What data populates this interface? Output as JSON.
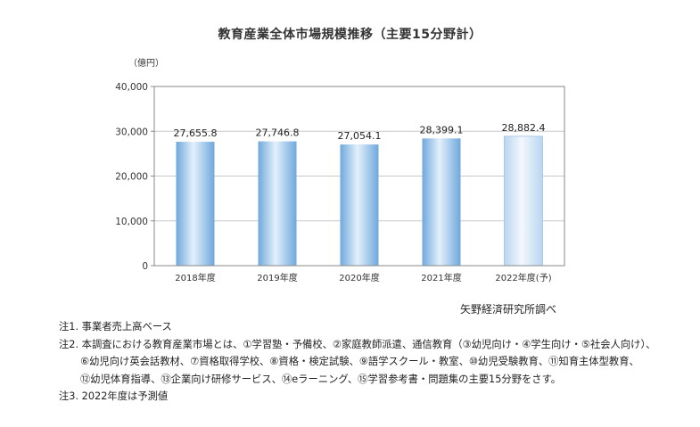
{
  "chart_data": {
    "type": "bar",
    "title": "教育産業全体市場規模推移（主要15分野計）",
    "ylabel": "（億円）",
    "xlabel": "",
    "categories": [
      "2018年度",
      "2019年度",
      "2020年度",
      "2021年度",
      "2022年度(予)"
    ],
    "values": [
      27655.8,
      27746.8,
      27054.1,
      28399.1,
      28882.4
    ],
    "value_labels": [
      "27,655.8",
      "27,746.8",
      "27,054.1",
      "28,399.1",
      "28,882.4"
    ],
    "forecast_index": 4,
    "ylim": [
      0,
      40000
    ],
    "yticks": [
      0,
      10000,
      20000,
      30000,
      40000
    ],
    "ytick_labels": [
      "0",
      "10,000",
      "20,000",
      "30,000",
      "40,000"
    ],
    "grid": true,
    "colors": {
      "bar_dark": "#6fa8dc",
      "bar_light": "#e3f0fb",
      "forecast_light": "#f3f8fd",
      "forecast_dark": "#b9d6f0",
      "grid": "#c8c8c8",
      "axis": "#888888"
    }
  },
  "source": "矢野経済研究所調べ",
  "notes": [
    "注1. 事業者売上高ベース",
    "注2. 本調査における教育産業市場とは、①学習塾・予備校、②家庭教師派遣、通信教育（③幼児向け・④学生向け・⑤社会人向け）、",
    "⑥幼児向け英会話教材、⑦資格取得学校、⑧資格・検定試験、⑨語学スクール・教室、⑩幼児受験教育、⑪知育主体型教育、",
    "⑫幼児体育指導、⑬企業向け研修サービス、⑭eラーニング、⑮学習参考書・問題集の主要15分野をさす。",
    "注3. 2022年度は予測値"
  ]
}
